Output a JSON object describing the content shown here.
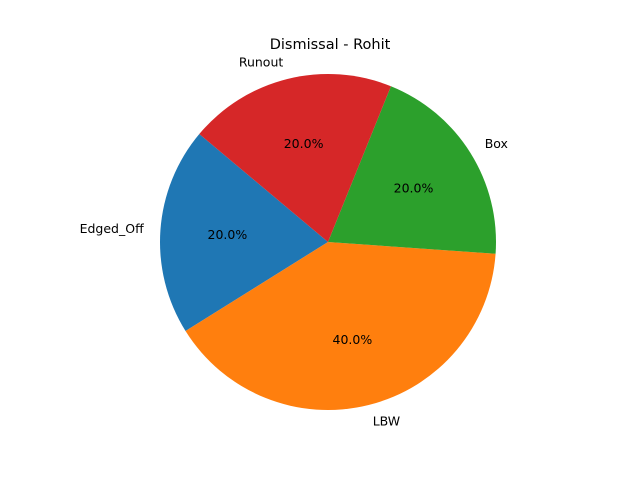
{
  "chart_data": {
    "type": "pie",
    "title": "Dismissal - Rohit",
    "slices": [
      {
        "label": "Edged_Off",
        "value": 20.0,
        "pct_label": "20.0%",
        "color": "#1f77b4"
      },
      {
        "label": "LBW",
        "value": 40.0,
        "pct_label": "40.0%",
        "color": "#ff7f0e"
      },
      {
        "label": "Box",
        "value": 20.0,
        "pct_label": "20.0%",
        "color": "#2ca02c"
      },
      {
        "label": "Runout",
        "value": 20.0,
        "pct_label": "20.0%",
        "color": "#d62728"
      }
    ],
    "start_angle_deg": 140,
    "direction": "counterclockwise",
    "legend": "none"
  }
}
